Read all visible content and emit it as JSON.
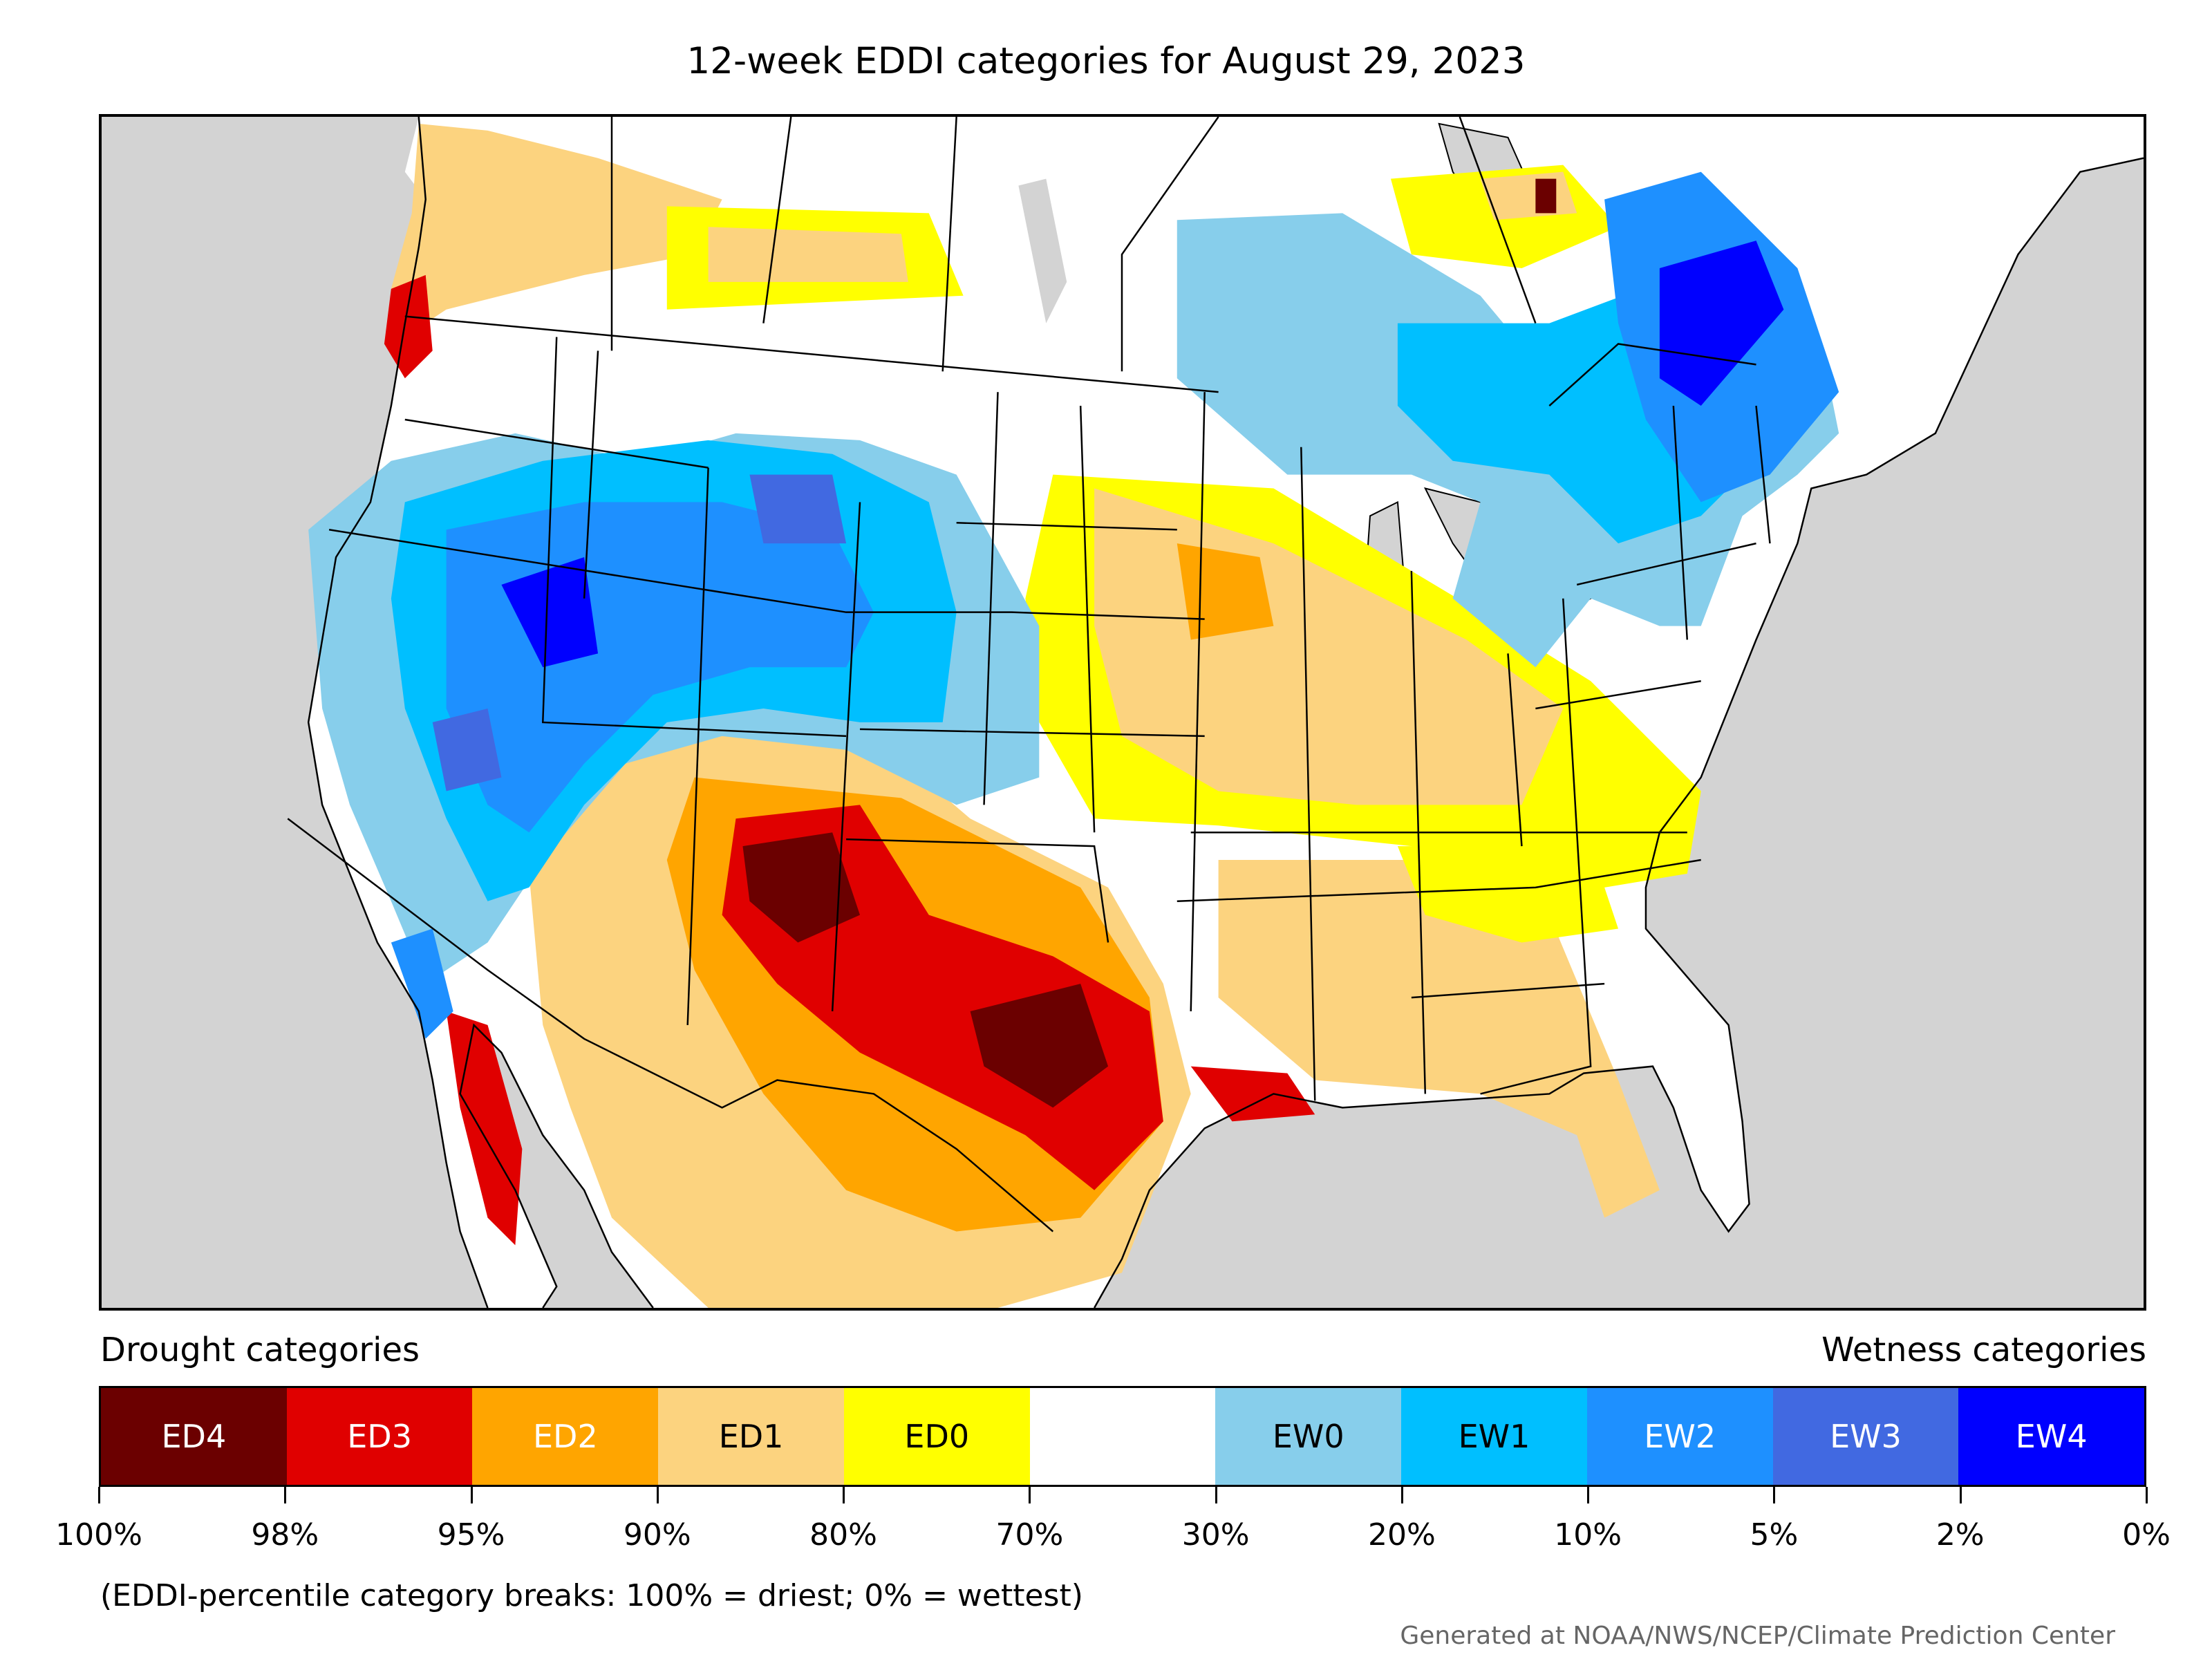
{
  "title": "12-week EDDI categories for August 29, 2023",
  "legend": {
    "drought_heading": "Drought categories",
    "wetness_heading": "Wetness categories",
    "categories": [
      {
        "label": "ED4",
        "color": "#6b0000",
        "text_color": "#ffffff"
      },
      {
        "label": "ED3",
        "color": "#e00000",
        "text_color": "#ffffff"
      },
      {
        "label": "ED2",
        "color": "#ffa500",
        "text_color": "#ffffff"
      },
      {
        "label": "ED1",
        "color": "#fcd37f",
        "text_color": "#000000"
      },
      {
        "label": "ED0",
        "color": "#ffff00",
        "text_color": "#000000"
      },
      {
        "label": "",
        "color": "#ffffff",
        "text_color": "#000000"
      },
      {
        "label": "EW0",
        "color": "#87ceeb",
        "text_color": "#000000"
      },
      {
        "label": "EW1",
        "color": "#00bfff",
        "text_color": "#000000"
      },
      {
        "label": "EW2",
        "color": "#1e90ff",
        "text_color": "#ffffff"
      },
      {
        "label": "EW3",
        "color": "#4169e1",
        "text_color": "#ffffff"
      },
      {
        "label": "EW4",
        "color": "#0000ff",
        "text_color": "#ffffff"
      }
    ],
    "breaks": [
      "100%",
      "98%",
      "95%",
      "90%",
      "80%",
      "70%",
      "30%",
      "20%",
      "10%",
      "5%",
      "2%",
      "0%"
    ]
  },
  "note": "(EDDI-percentile category breaks: 100% = driest; 0% = wettest)",
  "credit": "Generated at NOAA/NWS/NCEP/Climate Prediction Center",
  "colors": {
    "ocean": "#d3d3d3",
    "ED4": "#6b0000",
    "ED3": "#e00000",
    "ED2": "#ffa500",
    "ED1": "#fcd37f",
    "ED0": "#ffff00",
    "EW0": "#87ceeb",
    "EW1": "#00bfff",
    "EW2": "#1e90ff",
    "EW3": "#4169e1",
    "EW4": "#0000ff"
  }
}
